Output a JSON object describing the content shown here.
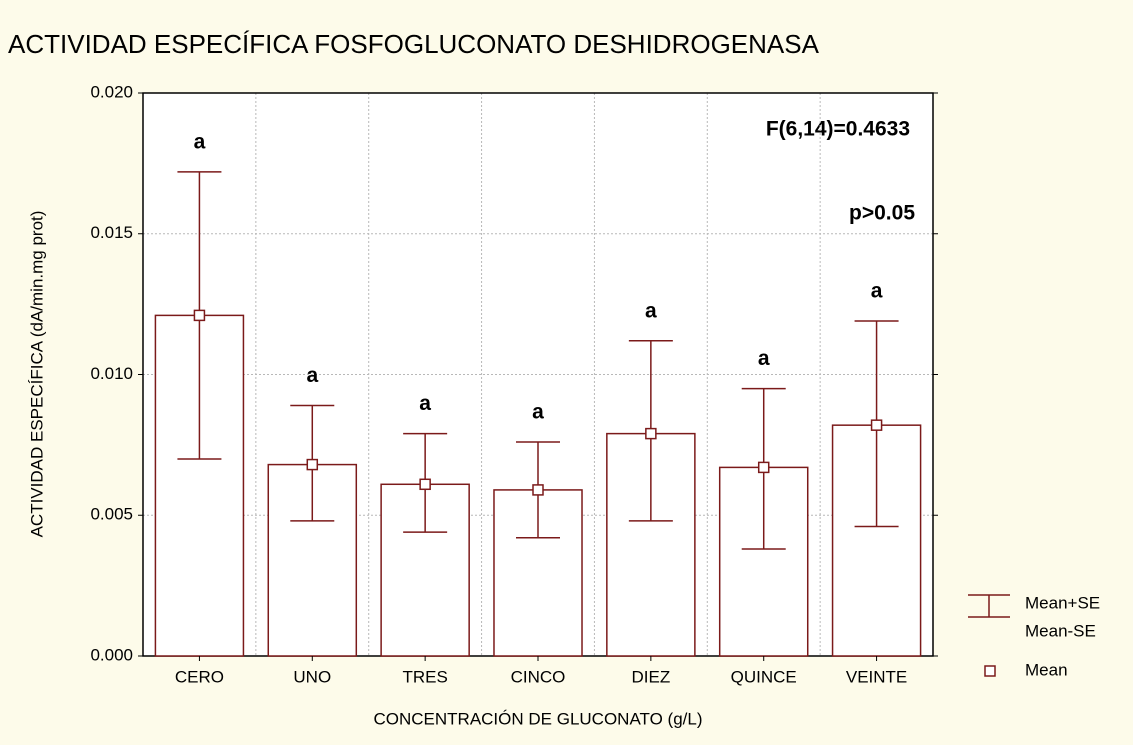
{
  "chart_data": {
    "type": "bar",
    "title": "ACTIVIDAD ESPECÍFICA FOSFOGLUCONATO DESHIDROGENASA",
    "x_label": "CONCENTRACIÓN DE GLUCONATO (g/L)",
    "y_label": "ACTIVIDAD ESPECÍFICA (dA/min.mg prot)",
    "categories": [
      "CERO",
      "UNO",
      "TRES",
      "CINCO",
      "DIEZ",
      "QUINCE",
      "VEINTE"
    ],
    "series": [
      {
        "name": "Mean+SE",
        "color": "#7b1a1a",
        "values": [
          0.0172,
          0.0089,
          0.0079,
          0.0076,
          0.0112,
          0.0095,
          0.0119
        ]
      },
      {
        "name": "Mean-SE",
        "color": "#7b1a1a",
        "values": [
          0.007,
          0.0048,
          0.0044,
          0.0042,
          0.0048,
          0.0038,
          0.0046
        ]
      },
      {
        "name": "Mean",
        "color": "#7b1a1a",
        "values": [
          0.0121,
          0.0068,
          0.0061,
          0.0059,
          0.0079,
          0.0067,
          0.0082
        ]
      }
    ],
    "group_labels": [
      "a",
      "a",
      "a",
      "a",
      "a",
      "a",
      "a"
    ],
    "annotations": [
      "F(6,14)=0.4633",
      "p>0.05"
    ],
    "ylim": [
      0,
      0.02
    ],
    "yticks": [
      {
        "value": 0,
        "label": "0.000"
      },
      {
        "value": 0.005,
        "label": "0.005"
      },
      {
        "value": 0.01,
        "label": "0.010"
      },
      {
        "value": 0.015,
        "label": "0.015"
      },
      {
        "value": 0.02,
        "label": "0.020"
      }
    ],
    "grid": true
  }
}
